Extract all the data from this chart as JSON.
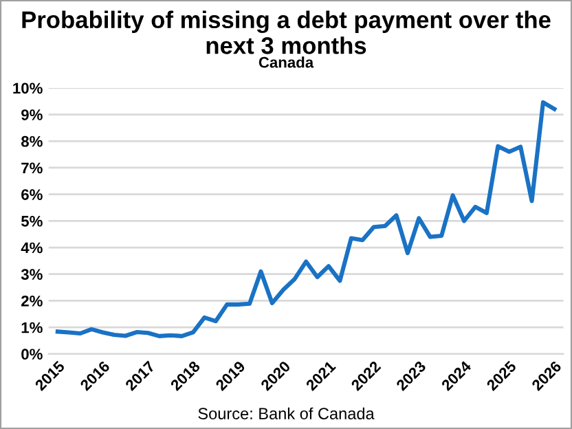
{
  "chart_data": {
    "type": "line",
    "title": "Probability of missing a debt payment over the next 3 months",
    "subtitle": "Canada",
    "x": [
      2015,
      2015.25,
      2015.5,
      2015.75,
      2016,
      2016.25,
      2016.5,
      2016.75,
      2017,
      2017.25,
      2017.5,
      2017.75,
      2018,
      2018.25,
      2018.5,
      2018.75,
      2019,
      2019.25,
      2019.5,
      2019.75,
      2020,
      2020.25,
      2020.5,
      2020.75,
      2021,
      2021.25,
      2021.5,
      2021.75,
      2022,
      2022.25,
      2022.5,
      2022.75,
      2023,
      2023.25,
      2023.5,
      2023.75,
      2024,
      2024.25,
      2024.5,
      2024.75,
      2025,
      2025.25,
      2025.5,
      2025.75,
      2026
    ],
    "series": [
      {
        "color": "#1a72c4",
        "values": [
          0.84,
          0.81,
          0.77,
          0.93,
          0.81,
          0.72,
          0.68,
          0.82,
          0.79,
          0.67,
          0.7,
          0.67,
          0.81,
          1.37,
          1.23,
          1.86,
          1.86,
          1.89,
          3.1,
          1.91,
          2.42,
          2.82,
          3.47,
          2.89,
          3.3,
          2.75,
          4.35,
          4.28,
          4.77,
          4.81,
          5.21,
          3.79,
          5.1,
          4.4,
          4.44,
          5.96,
          5.0,
          5.53,
          5.3,
          7.81,
          7.6,
          7.79,
          5.75,
          9.46,
          9.21
        ]
      }
    ],
    "xlim": [
      2014.8,
      2026.2
    ],
    "xticks": [
      2015,
      2016,
      2017,
      2018,
      2019,
      2020,
      2021,
      2022,
      2023,
      2024,
      2025,
      2026
    ],
    "ylim": [
      0,
      10
    ],
    "yticks": [
      {
        "value": 0,
        "label": "0%"
      },
      {
        "value": 1,
        "label": "1%"
      },
      {
        "value": 2,
        "label": "2%"
      },
      {
        "value": 3,
        "label": "3%"
      },
      {
        "value": 4,
        "label": "4%"
      },
      {
        "value": 5,
        "label": "5%"
      },
      {
        "value": 6,
        "label": "6%"
      },
      {
        "value": 7,
        "label": "7%"
      },
      {
        "value": 8,
        "label": "8%"
      },
      {
        "value": 9,
        "label": "9%"
      },
      {
        "value": 10,
        "label": "10%"
      }
    ],
    "grid": "y",
    "legend": false,
    "marker": "none",
    "line_style": "solid",
    "annotations": [
      "Source: Bank of Canada"
    ]
  }
}
